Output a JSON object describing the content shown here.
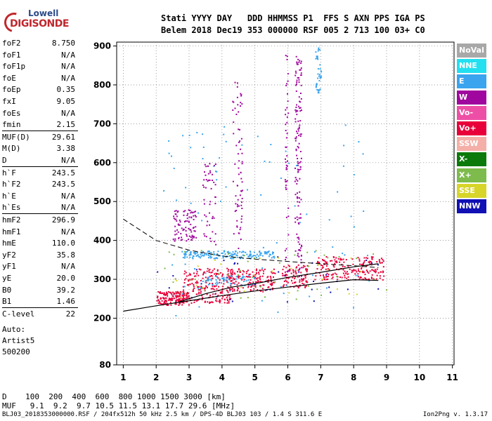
{
  "logo": {
    "line1": "Lowell",
    "line2": "DIGISONDE"
  },
  "header": {
    "line1": "Stati YYYY DAY   DDD HHMMSS P1  FFS S AXN PPS IGA PS",
    "line2": "Belem 2018 Dec19 353 000000 RSF 005 2 713 100 03+ C0"
  },
  "params": [
    {
      "k": "foF2",
      "v": "8.750"
    },
    {
      "k": "foF1",
      "v": "N/A"
    },
    {
      "k": "foF1p",
      "v": "N/A"
    },
    {
      "k": "foE",
      "v": "N/A"
    },
    {
      "k": "foEp",
      "v": "0.35"
    },
    {
      "k": "fxI",
      "v": "9.05"
    },
    {
      "k": "foEs",
      "v": "N/A"
    },
    {
      "k": "fmin",
      "v": "2.15"
    },
    {
      "k": "MUF(D)",
      "v": "29.61"
    },
    {
      "k": "M(D)",
      "v": "3.38"
    },
    {
      "k": "D",
      "v": "N/A"
    },
    {
      "k": "h`F",
      "v": "243.5"
    },
    {
      "k": "h`F2",
      "v": "243.5"
    },
    {
      "k": "h`E",
      "v": "N/A"
    },
    {
      "k": "h`Es",
      "v": "N/A"
    },
    {
      "k": "hmF2",
      "v": "296.9"
    },
    {
      "k": "hmF1",
      "v": "N/A"
    },
    {
      "k": "hmE",
      "v": "110.0"
    },
    {
      "k": "yF2",
      "v": "35.8"
    },
    {
      "k": "yF1",
      "v": "N/A"
    },
    {
      "k": "yE",
      "v": "20.0"
    },
    {
      "k": "B0",
      "v": "39.2"
    },
    {
      "k": "B1",
      "v": "1.46"
    },
    {
      "k": "C-level",
      "v": "22"
    }
  ],
  "auto": {
    "line1": "Auto:",
    "line2": "Artist5",
    "line3": "500200"
  },
  "legend": [
    {
      "label": "NoVal",
      "color": "#a8a8a8"
    },
    {
      "label": "NNE",
      "color": "#22e0f0"
    },
    {
      "label": "E",
      "color": "#3aa4ee"
    },
    {
      "label": "W",
      "color": "#a0079e"
    },
    {
      "label": "Vo-",
      "color": "#ee4fa6"
    },
    {
      "label": "Vo+",
      "color": "#e8003a"
    },
    {
      "label": "SSW",
      "color": "#f4b0a8"
    },
    {
      "label": "X-",
      "color": "#0b7a0b"
    },
    {
      "label": "X+",
      "color": "#7dbb4c"
    },
    {
      "label": "SSE",
      "color": "#d8d52a"
    },
    {
      "label": "NNW",
      "color": "#1010b4"
    }
  ],
  "bottom": {
    "d_row": "D    100  200  400  600  800 1000 1500 3000 [km]",
    "muf_row": "MUF   9.1  9.2  9.7 10.5 11.5 13.1 17.7 29.6 [MHz]"
  },
  "footer": {
    "left": "BLJ03_2018353000000.RSF / 204fx512h 50 kHz 2.5 km / DPS-4D BLJ03 103 / 1.4 S 311.6 E",
    "right": "Ion2Png v. 1.3.17"
  },
  "chart_data": {
    "type": "scatter",
    "x_ticks": [
      "1",
      "2",
      "3",
      "4",
      "5",
      "6",
      "7",
      "8",
      "9",
      "10",
      "11"
    ],
    "y_ticks": [
      "80",
      "200",
      "300",
      "400",
      "500",
      "600",
      "700",
      "800",
      "900"
    ],
    "x_range": [
      0.8,
      11.05
    ],
    "y_range": [
      80,
      910
    ],
    "clusters": [
      {
        "x": [
          2.0,
          3.0
        ],
        "y": [
          235,
          270
        ],
        "color": "#e8003a",
        "n": 160
      },
      {
        "x": [
          2.8,
          4.3
        ],
        "y": [
          240,
          330
        ],
        "color": "#e8003a",
        "n": 220
      },
      {
        "x": [
          4.2,
          5.6
        ],
        "y": [
          270,
          330
        ],
        "color": "#e8003a",
        "n": 150
      },
      {
        "x": [
          5.8,
          6.6
        ],
        "y": [
          280,
          340
        ],
        "color": "#e8003a",
        "n": 90
      },
      {
        "x": [
          6.8,
          8.9
        ],
        "y": [
          300,
          360
        ],
        "color": "#e8003a",
        "n": 200
      },
      {
        "x": [
          2.8,
          5.6
        ],
        "y": [
          355,
          375
        ],
        "color": "#3aa4ee",
        "n": 180
      },
      {
        "x": [
          3.4,
          5.0
        ],
        "y": [
          285,
          310
        ],
        "color": "#3aa4ee",
        "n": 60
      },
      {
        "x": [
          2.5,
          3.2
        ],
        "y": [
          400,
          480
        ],
        "color": "#a0079e",
        "n": 90
      },
      {
        "x": [
          3.4,
          3.8
        ],
        "y": [
          390,
          600
        ],
        "color": "#a0079e",
        "n": 50
      },
      {
        "x": [
          4.3,
          4.6
        ],
        "y": [
          380,
          820
        ],
        "color": "#a0079e",
        "n": 70
      },
      {
        "x": [
          6.2,
          6.4
        ],
        "y": [
          300,
          880
        ],
        "color": "#a0079e",
        "n": 140
      },
      {
        "x": [
          5.9,
          6.0
        ],
        "y": [
          320,
          880
        ],
        "color": "#a0079e",
        "n": 50
      },
      {
        "x": [
          6.8,
          7.0
        ],
        "y": [
          780,
          900
        ],
        "color": "#3aa4ee",
        "n": 40
      },
      {
        "x": [
          2.2,
          8.6
        ],
        "y": [
          200,
          700
        ],
        "color": "#3aa4ee",
        "n": 90
      },
      {
        "x": [
          2.0,
          9.0
        ],
        "y": [
          250,
          380
        ],
        "color": "#7dbb4c",
        "n": 50
      },
      {
        "x": [
          2.0,
          9.0
        ],
        "y": [
          240,
          360
        ],
        "color": "#1010b4",
        "n": 35
      },
      {
        "x": [
          2.0,
          8.5
        ],
        "y": [
          250,
          360
        ],
        "color": "#d8d52a",
        "n": 25
      }
    ],
    "profile_x": [
      1.0,
      2.0,
      3.0,
      4.0,
      5.0,
      6.0,
      7.0,
      8.0,
      8.75
    ],
    "profile_y": [
      218,
      232,
      245,
      258,
      270,
      280,
      290,
      299,
      297
    ],
    "trace_x": [
      2.7,
      3.5,
      4.3,
      5.2,
      6.0,
      7.0,
      8.0,
      8.75
    ],
    "trace_y": [
      242,
      263,
      280,
      292,
      305,
      318,
      332,
      340
    ],
    "dashed_x": [
      1.0,
      2.0,
      3.0,
      4.0,
      5.0,
      6.0,
      7.0,
      8.0,
      8.75
    ],
    "dashed_y": [
      455,
      400,
      375,
      360,
      352,
      346,
      340,
      335,
      330
    ]
  }
}
